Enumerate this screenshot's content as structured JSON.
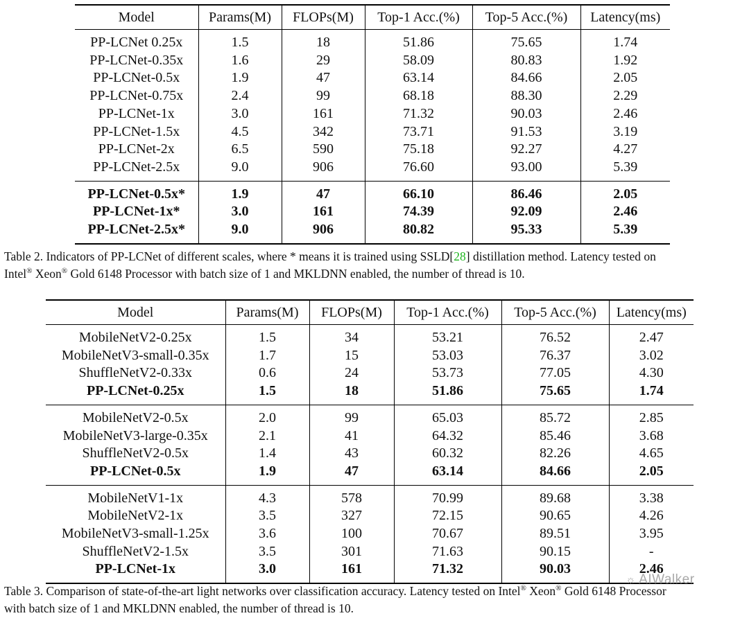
{
  "table2": {
    "columns": [
      "Model",
      "Params(M)",
      "FLOPs(M)",
      "Top-1 Acc.(%)",
      "Top-5 Acc.(%)",
      "Latency(ms)"
    ],
    "groups": [
      {
        "rows": [
          {
            "bold": false,
            "cells": [
              "PP-LCNet 0.25x",
              "1.5",
              "18",
              "51.86",
              "75.65",
              "1.74"
            ]
          },
          {
            "bold": false,
            "cells": [
              "PP-LCNet-0.35x",
              "1.6",
              "29",
              "58.09",
              "80.83",
              "1.92"
            ]
          },
          {
            "bold": false,
            "cells": [
              "PP-LCNet-0.5x",
              "1.9",
              "47",
              "63.14",
              "84.66",
              "2.05"
            ]
          },
          {
            "bold": false,
            "cells": [
              "PP-LCNet-0.75x",
              "2.4",
              "99",
              "68.18",
              "88.30",
              "2.29"
            ]
          },
          {
            "bold": false,
            "cells": [
              "PP-LCNet-1x",
              "3.0",
              "161",
              "71.32",
              "90.03",
              "2.46"
            ]
          },
          {
            "bold": false,
            "cells": [
              "PP-LCNet-1.5x",
              "4.5",
              "342",
              "73.71",
              "91.53",
              "3.19"
            ]
          },
          {
            "bold": false,
            "cells": [
              "PP-LCNet-2x",
              "6.5",
              "590",
              "75.18",
              "92.27",
              "4.27"
            ]
          },
          {
            "bold": false,
            "cells": [
              "PP-LCNet-2.5x",
              "9.0",
              "906",
              "76.60",
              "93.00",
              "5.39"
            ]
          }
        ]
      },
      {
        "rows": [
          {
            "bold": true,
            "cells": [
              "PP-LCNet-0.5x*",
              "1.9",
              "47",
              "66.10",
              "86.46",
              "2.05"
            ]
          },
          {
            "bold": true,
            "cells": [
              "PP-LCNet-1x*",
              "3.0",
              "161",
              "74.39",
              "92.09",
              "2.46"
            ]
          },
          {
            "bold": true,
            "cells": [
              "PP-LCNet-2.5x*",
              "9.0",
              "906",
              "80.82",
              "95.33",
              "5.39"
            ]
          }
        ]
      }
    ],
    "caption": {
      "before_cite": "Table 2. Indicators of PP-LCNet of different scales, where * means it is trained using SSLD[",
      "cite": "28",
      "after_cite": "] distillation method.  Latency tested on",
      "line2_a": "Intel",
      "reg": "®",
      "line2_b": " Xeon",
      "reg2": "®",
      "line2_c": " Gold 6148 Processor with batch size of 1 and MKLDNN enabled, the number of thread is 10."
    }
  },
  "table3": {
    "columns": [
      "Model",
      "Params(M)",
      "FLOPs(M)",
      "Top-1 Acc.(%)",
      "Top-5 Acc.(%)",
      "Latency(ms)"
    ],
    "groups": [
      {
        "rows": [
          {
            "bold": false,
            "cells": [
              "MobileNetV2-0.25x",
              "1.5",
              "34",
              "53.21",
              "76.52",
              "2.47"
            ]
          },
          {
            "bold": false,
            "cells": [
              "MobileNetV3-small-0.35x",
              "1.7",
              "15",
              "53.03",
              "76.37",
              "3.02"
            ]
          },
          {
            "bold": false,
            "cells": [
              "ShuffleNetV2-0.33x",
              "0.6",
              "24",
              "53.73",
              "77.05",
              "4.30"
            ]
          },
          {
            "bold": true,
            "cells": [
              "PP-LCNet-0.25x",
              "1.5",
              "18",
              "51.86",
              "75.65",
              "1.74"
            ]
          }
        ]
      },
      {
        "rows": [
          {
            "bold": false,
            "cells": [
              "MobileNetV2-0.5x",
              "2.0",
              "99",
              "65.03",
              "85.72",
              "2.85"
            ]
          },
          {
            "bold": false,
            "cells": [
              "MobileNetV3-large-0.35x",
              "2.1",
              "41",
              "64.32",
              "85.46",
              "3.68"
            ]
          },
          {
            "bold": false,
            "cells": [
              "ShuffleNetV2-0.5x",
              "1.4",
              "43",
              "60.32",
              "82.26",
              "4.65"
            ]
          },
          {
            "bold": true,
            "cells": [
              "PP-LCNet-0.5x",
              "1.9",
              "47",
              "63.14",
              "84.66",
              "2.05"
            ]
          }
        ]
      },
      {
        "rows": [
          {
            "bold": false,
            "cells": [
              "MobileNetV1-1x",
              "4.3",
              "578",
              "70.99",
              "89.68",
              "3.38"
            ]
          },
          {
            "bold": false,
            "cells": [
              "MobileNetV2-1x",
              "3.5",
              "327",
              "72.15",
              "90.65",
              "4.26"
            ]
          },
          {
            "bold": false,
            "cells": [
              "MobileNetV3-small-1.25x",
              "3.6",
              "100",
              "70.67",
              "89.51",
              "3.95"
            ]
          },
          {
            "bold": false,
            "cells": [
              "ShuffleNetV2-1.5x",
              "3.5",
              "301",
              "71.63",
              "90.15",
              "-"
            ]
          },
          {
            "bold": true,
            "cells": [
              "PP-LCNet-1x",
              "3.0",
              "161",
              "71.32",
              "90.03",
              "2.46"
            ]
          }
        ]
      }
    ],
    "caption": {
      "line1_a": "Table 3. Comparison of state-of-the-art light networks over classification accuracy. Latency tested on Intel",
      "reg": "®",
      "line1_b": " Xeon",
      "reg2": "®",
      "line1_c": " Gold 6148 Processor",
      "line2": "with batch size of 1 and MKLDNN enabled, the number of thread is 10."
    }
  },
  "watermark": {
    "icon": "wechat-icon",
    "text": "AIWalker"
  }
}
